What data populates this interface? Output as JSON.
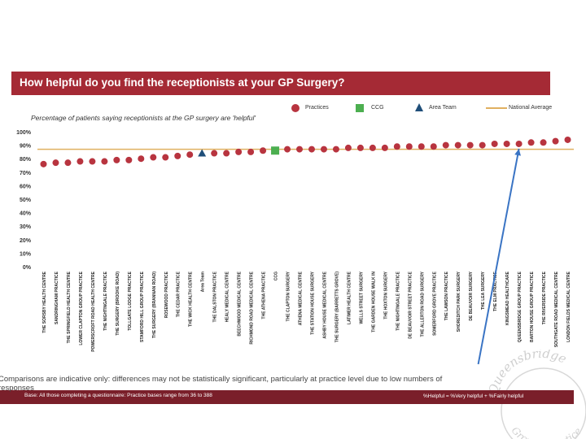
{
  "header": {
    "title": "How helpful do you find the receptionists at your GP Surgery?"
  },
  "subtitle": "Percentage of patients saying receptionists at the GP surgery are 'helpful'",
  "legend": {
    "practices": "Practices",
    "ccg": "CCG",
    "area_team": "Area Team",
    "national_average": "National Average"
  },
  "footer": {
    "disclaimer_line1": "Comparisons are indicative only: differences may not be statistically significant, particularly at practice level due to low numbers of",
    "disclaimer_line2": "responses",
    "base_note": "Base: All those completing a questionnaire: Practice bases range from 36 to 388",
    "key_note": "%Helpful = %Very helpful + %Fairly helpful"
  },
  "watermark": {
    "line1": "Queensbridge",
    "line2": "Group - Practice"
  },
  "colors": {
    "title_bar": "#a52a35",
    "practice_marker": "#b8343f",
    "ccg_marker": "#4caf50",
    "area_team_marker": "#1f4e79",
    "national_average_line": "#e0b060",
    "arrow": "#3a74c4",
    "footer_bar": "#7a1f2a"
  },
  "chart_data": {
    "type": "scatter",
    "title": "Percentage of patients saying receptionists at the GP surgery are 'helpful'",
    "ylim": [
      0,
      100
    ],
    "y_ticks": [
      "0%",
      "10%",
      "20%",
      "30%",
      "40%",
      "50%",
      "60%",
      "70%",
      "80%",
      "90%",
      "100%"
    ],
    "grid": false,
    "legend_position": "top-right",
    "national_average": 87,
    "categories": [
      "THE SORSBY HEALTH CENTRE",
      "SANDRINGHAM PRACTICE",
      "THE SPRINGFIELD HEALTH CENTRE",
      "LOWER CLAPTON GROUP PRACTICE",
      "POWERSCROFT ROAD HEALTH CENTRE",
      "THE NIGHTINGALE PRACTICE",
      "THE SURGERY (BROOKE ROAD)",
      "TOLLGATE LODGE PRACTICE",
      "STAMFORD HILL GROUP PRACTICE",
      "THE SURGERY (BRANNAN ROAD)",
      "ROSEWOOD PRACTICE",
      "THE CEDAR PRACTICE",
      "THE WICK HEALTH CENTRE",
      "Area Team",
      "THE DALSTON PRACTICE",
      "HEALY MEDICAL CENTRE",
      "BEECHWOOD MEDICAL CENTRE",
      "RICHMOND ROAD MEDICAL CENTRE",
      "THE ATHENA PRACTICE",
      "CCG",
      "THE CLAPTON SURGERY",
      "ATHENA MEDICAL CENTRE",
      "THE STATION HOUSE SURGERY",
      "ASHBY HOUSE MEDICAL CENTRE",
      "THE SURGERY (BARRETTS GROVE)",
      "LATIMER HEALTH CENTRE",
      "WELLS STREET SURGERY",
      "THE GARDEN HOUSE WALK IN",
      "THE HOXTON SURGERY",
      "THE NIGHTINGALE PRACTICE",
      "DE BEAUVOIR STREET PRACTICE",
      "THE ALLERTON ROAD SURGERY",
      "SOMERFORD GROVE PRACTICE",
      "THE LAWSON PRACTICE",
      "SHOREDITCH PARK SURGERY",
      "DE BEAUVOIR SURGERY",
      "THE LEA SURGERY",
      "THE ELM PRACTICE",
      "KINGSMEAD HEALTHCARE",
      "QUEENSBRIDGE GROUP PRACTICE",
      "BARTON HOUSE GROUP PRACTICE",
      "THE RIVERSIDE PRACTICE",
      "SOUTHGATE ROAD MEDICAL CENTRE",
      "LONDON FIELDS MEDICAL CENTRE"
    ],
    "series": [
      {
        "name": "Practices",
        "marker": "circle",
        "values": [
          76,
          77,
          77,
          78,
          78,
          78,
          79,
          79,
          80,
          81,
          81,
          82,
          83,
          null,
          84,
          84,
          85,
          85,
          86,
          null,
          87,
          87,
          87,
          87,
          87,
          88,
          88,
          88,
          88,
          89,
          89,
          89,
          89,
          90,
          90,
          90,
          90,
          91,
          91,
          91,
          92,
          92,
          93,
          94
        ]
      },
      {
        "name": "CCG",
        "marker": "square",
        "values": [
          null,
          null,
          null,
          null,
          null,
          null,
          null,
          null,
          null,
          null,
          null,
          null,
          null,
          null,
          null,
          null,
          null,
          null,
          null,
          86,
          null,
          null,
          null,
          null,
          null,
          null,
          null,
          null,
          null,
          null,
          null,
          null,
          null,
          null,
          null,
          null,
          null,
          null,
          null,
          null,
          null,
          null,
          null,
          null
        ]
      },
      {
        "name": "Area Team",
        "marker": "triangle",
        "values": [
          null,
          null,
          null,
          null,
          null,
          null,
          null,
          null,
          null,
          null,
          null,
          null,
          null,
          84,
          null,
          null,
          null,
          null,
          null,
          null,
          null,
          null,
          null,
          null,
          null,
          null,
          null,
          null,
          null,
          null,
          null,
          null,
          null,
          null,
          null,
          null,
          null,
          null,
          null,
          null,
          null,
          null,
          null,
          null
        ]
      }
    ],
    "annotation": {
      "type": "arrow",
      "points_to": "QUEENSBRIDGE GROUP PRACTICE"
    }
  }
}
